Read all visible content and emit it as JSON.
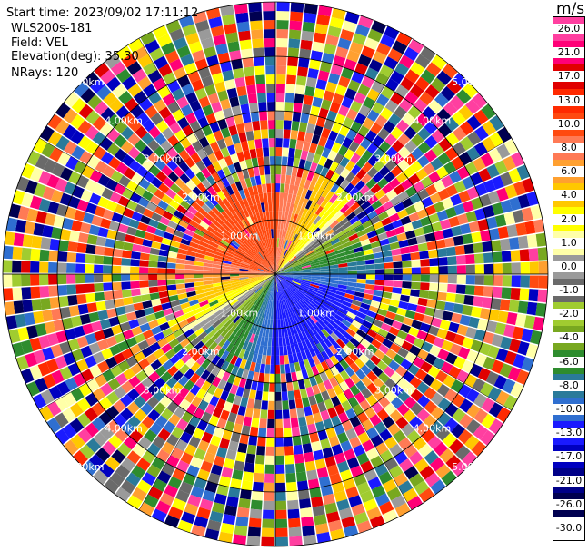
{
  "header": {
    "start_time": "Start time: 2023/09/02 17:11:12",
    "device": "WLS200s-181",
    "field": "Field: VEL",
    "elevation": "Elevation(deg): 35.30",
    "nrays": "NRays: 120"
  },
  "colorbar": {
    "unit": "m/s",
    "levels": [
      "26.0",
      "21.0",
      "17.0",
      "13.0",
      "10.0",
      "8.0",
      "6.0",
      "4.0",
      "2.0",
      "1.0",
      "0.0",
      "-1.0",
      "-2.0",
      "-4.0",
      "-6.0",
      "-8.0",
      "-10.0",
      "-13.0",
      "-17.0",
      "-21.0",
      "-26.0",
      "-30.0"
    ],
    "colors": [
      "#ff3fa0",
      "#ff0077",
      "#e00000",
      "#ff2a00",
      "#ff4a10",
      "#ff7a55",
      "#ffa030",
      "#ffc800",
      "#ffff00",
      "#ffffa8",
      "#9a9a9a",
      "#6a6a6a",
      "#a0cc30",
      "#78a820",
      "#2e8c2e",
      "#2a7a9a",
      "#2f6fd0",
      "#1a1aff",
      "#0000c0",
      "#000088",
      "#000050",
      "#ffffff"
    ]
  },
  "range_rings": {
    "labels": [
      "1.00km",
      "2.00km",
      "3.00km",
      "4.00km",
      "5.00km"
    ]
  }
}
